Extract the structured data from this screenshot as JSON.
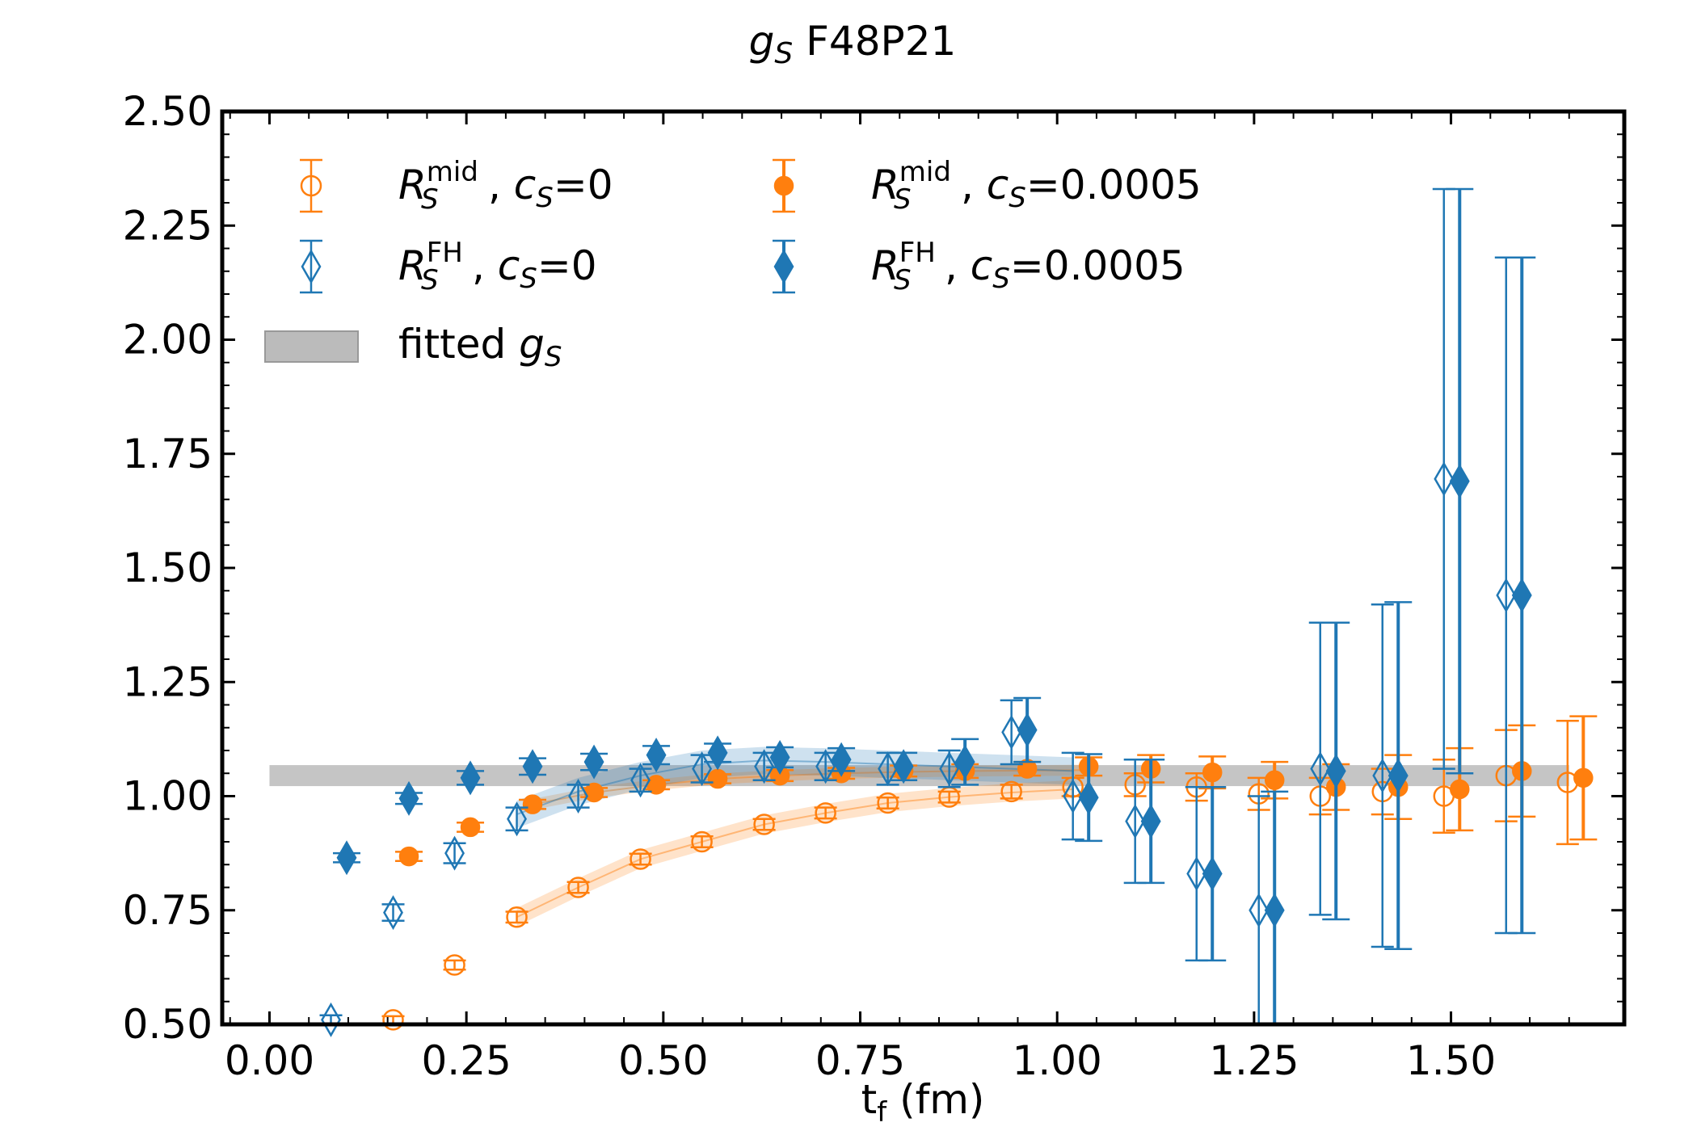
{
  "chart_data": {
    "type": "scatter",
    "title_math": "g",
    "title_sub": "S",
    "title_rest": " F48P21",
    "xlabel": "t",
    "xlabel_sub": "f",
    "xlabel_unit": " (fm)",
    "xlim": [
      -0.06,
      1.72
    ],
    "ylim": [
      0.5,
      2.5
    ],
    "xticks": [
      "0.00",
      "0.25",
      "0.50",
      "0.75",
      "1.00",
      "1.25",
      "1.50"
    ],
    "xtick_values": [
      0.0,
      0.25,
      0.5,
      0.75,
      1.0,
      1.25,
      1.5
    ],
    "yticks": [
      "0.50",
      "0.75",
      "1.00",
      "1.25",
      "1.50",
      "1.75",
      "2.00",
      "2.25",
      "2.50"
    ],
    "ytick_values": [
      0.5,
      0.75,
      1.0,
      1.25,
      1.5,
      1.75,
      2.0,
      2.25,
      2.5
    ],
    "colors": {
      "orange": "#ff7f0e",
      "blue": "#1f77b4",
      "gray": "#bbbbbb"
    },
    "legend": {
      "placement": "top-left",
      "entries": [
        {
          "sym": "R",
          "sup": "mid",
          "sub": "S",
          "mid": ", ",
          "cs": "c",
          "cs_sub": "S",
          "val": "=0"
        },
        {
          "sym": "R",
          "sup": "mid",
          "sub": "S",
          "mid": ", ",
          "cs": "c",
          "cs_sub": "S",
          "val": "=0.0005"
        },
        {
          "sym": "R",
          "sup": "FH",
          "sub": "S",
          "mid": ",  ",
          "cs": "c",
          "cs_sub": "S",
          "val": "=0"
        },
        {
          "sym": "R",
          "sup": "FH",
          "sub": "S",
          "mid": ",  ",
          "cs": "c",
          "cs_sub": "S",
          "val": "=0.0005"
        },
        {
          "text": "fitted ",
          "math": "g",
          "math_sub": "S"
        }
      ]
    },
    "fit_band": {
      "name": "fitted gS",
      "x": [
        0.0,
        1.65
      ],
      "y_low": 1.022,
      "y_high": 1.068
    },
    "series": [
      {
        "name": "R_S^mid, c_S=0",
        "color": "#ff7f0e",
        "marker": "circle",
        "filled": false,
        "x": [
          0.157,
          0.235,
          0.314,
          0.392,
          0.471,
          0.549,
          0.628,
          0.706,
          0.785,
          0.863,
          0.942,
          1.02,
          1.099,
          1.177,
          1.256,
          1.334,
          1.413,
          1.491,
          1.57,
          1.648
        ],
        "y": [
          0.51,
          0.63,
          0.735,
          0.8,
          0.862,
          0.9,
          0.938,
          0.963,
          0.985,
          0.998,
          1.01,
          1.02,
          1.025,
          1.02,
          1.005,
          1.0,
          1.01,
          1.0,
          1.045,
          1.03
        ],
        "err": [
          0.008,
          0.01,
          0.012,
          0.012,
          0.012,
          0.012,
          0.012,
          0.012,
          0.012,
          0.012,
          0.015,
          0.02,
          0.025,
          0.03,
          0.035,
          0.04,
          0.05,
          0.08,
          0.1,
          0.135
        ]
      },
      {
        "name": "R_S^mid, c_S=0.0005",
        "color": "#ff7f0e",
        "marker": "circle",
        "filled": true,
        "x": [
          0.177,
          0.255,
          0.334,
          0.412,
          0.491,
          0.569,
          0.648,
          0.726,
          0.805,
          0.883,
          0.962,
          1.04,
          1.119,
          1.197,
          1.276,
          1.354,
          1.433,
          1.511,
          1.59,
          1.668
        ],
        "y": [
          0.868,
          0.932,
          0.982,
          1.008,
          1.025,
          1.038,
          1.045,
          1.05,
          1.055,
          1.055,
          1.06,
          1.065,
          1.06,
          1.052,
          1.035,
          1.02,
          1.02,
          1.015,
          1.055,
          1.04
        ],
        "err": [
          0.01,
          0.01,
          0.01,
          0.01,
          0.01,
          0.01,
          0.012,
          0.012,
          0.012,
          0.015,
          0.015,
          0.02,
          0.03,
          0.035,
          0.04,
          0.05,
          0.07,
          0.09,
          0.1,
          0.135
        ]
      },
      {
        "name": "R_S^FH, c_S=0",
        "color": "#1f77b4",
        "marker": "diamond",
        "filled": false,
        "x": [
          0.078,
          0.157,
          0.235,
          0.314,
          0.392,
          0.471,
          0.549,
          0.628,
          0.706,
          0.785,
          0.863,
          0.942,
          1.02,
          1.099,
          1.177,
          1.256,
          1.334,
          1.413,
          1.491,
          1.57
        ],
        "y": [
          0.51,
          0.745,
          0.875,
          0.95,
          1.0,
          1.035,
          1.06,
          1.065,
          1.065,
          1.06,
          1.06,
          1.14,
          1.0,
          0.945,
          0.83,
          0.75,
          1.06,
          1.045,
          1.695,
          1.44
        ],
        "err": [
          0.01,
          0.018,
          0.022,
          0.025,
          0.025,
          0.025,
          0.03,
          0.03,
          0.03,
          0.035,
          0.04,
          0.07,
          0.095,
          0.135,
          0.19,
          0.25,
          0.32,
          0.375,
          0.635,
          0.74
        ]
      },
      {
        "name": "R_S^FH, c_S=0.0005",
        "color": "#1f77b4",
        "marker": "diamond",
        "filled": true,
        "x": [
          0.098,
          0.177,
          0.255,
          0.334,
          0.412,
          0.491,
          0.569,
          0.648,
          0.726,
          0.805,
          0.883,
          0.962,
          1.04,
          1.119,
          1.197,
          1.276,
          1.354,
          1.433,
          1.511,
          1.59
        ],
        "y": [
          0.865,
          0.995,
          1.04,
          1.065,
          1.075,
          1.09,
          1.095,
          1.085,
          1.08,
          1.065,
          1.075,
          1.145,
          0.997,
          0.945,
          0.83,
          0.75,
          1.055,
          1.045,
          1.69,
          1.44
        ],
        "err": [
          0.01,
          0.012,
          0.015,
          0.018,
          0.018,
          0.02,
          0.02,
          0.022,
          0.025,
          0.03,
          0.05,
          0.07,
          0.095,
          0.135,
          0.19,
          0.26,
          0.325,
          0.38,
          0.64,
          0.74
        ]
      }
    ],
    "fit_curves": [
      {
        "name": "c_S=0 mid fit",
        "color": "#ff7f0e",
        "x": [
          0.314,
          0.392,
          0.471,
          0.549,
          0.628,
          0.706,
          0.785,
          0.863,
          0.942,
          1.02
        ],
        "y": [
          0.735,
          0.8,
          0.862,
          0.9,
          0.938,
          0.963,
          0.985,
          0.998,
          1.008,
          1.015
        ],
        "halfwidth": 0.02
      },
      {
        "name": "c_S=0.0005 mid fit",
        "color": "#ff7f0e",
        "x": [
          0.334,
          0.412,
          0.491,
          0.569,
          0.648,
          0.726,
          0.805,
          0.883,
          0.962,
          1.04
        ],
        "y": [
          0.982,
          1.008,
          1.025,
          1.038,
          1.045,
          1.05,
          1.053,
          1.055,
          1.056,
          1.057
        ],
        "halfwidth": 0.012
      },
      {
        "name": "FH fit",
        "color": "#1f77b4",
        "x": [
          0.314,
          0.392,
          0.471,
          0.549,
          0.628,
          0.706,
          0.785,
          0.863,
          0.942,
          1.02
        ],
        "y": [
          0.96,
          1.01,
          1.045,
          1.07,
          1.078,
          1.075,
          1.07,
          1.065,
          1.06,
          1.055
        ],
        "halfwidth": 0.03
      }
    ]
  }
}
